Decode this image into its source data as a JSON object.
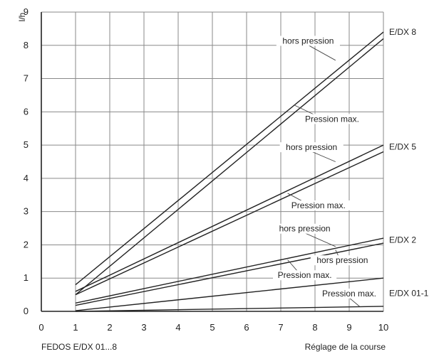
{
  "chart_data": {
    "type": "line",
    "ylabel": "l/h",
    "xlabel": "Réglage de la course",
    "footer_left": "FEDOS E/DX 01...8",
    "xlim": [
      0,
      10
    ],
    "ylim": [
      0,
      9
    ],
    "x_ticks": [
      "0",
      "1",
      "2",
      "3",
      "4",
      "5",
      "6",
      "7",
      "8",
      "9",
      "10"
    ],
    "y_ticks": [
      "0",
      "1",
      "2",
      "3",
      "4",
      "5",
      "6",
      "7",
      "8",
      "9"
    ],
    "grid": true,
    "series": [
      {
        "name": "E/DX 8 hors pression",
        "x": [
          1,
          10
        ],
        "y": [
          0.8,
          8.4
        ]
      },
      {
        "name": "E/DX 8 Pression max.",
        "x": [
          1,
          10
        ],
        "y": [
          0.5,
          8.2
        ]
      },
      {
        "name": "E/DX 5 hors pression",
        "x": [
          1,
          10
        ],
        "y": [
          0.6,
          5.0
        ]
      },
      {
        "name": "E/DX 5 Pression max.",
        "x": [
          1,
          10
        ],
        "y": [
          0.5,
          4.8
        ]
      },
      {
        "name": "E/DX 2 hors pression",
        "x": [
          1,
          10
        ],
        "y": [
          0.25,
          2.2
        ]
      },
      {
        "name": "E/DX 2 Pression max.",
        "x": [
          1,
          10
        ],
        "y": [
          0.18,
          2.05
        ]
      },
      {
        "name": "E/DX 01-1 hors pression",
        "x": [
          1,
          10
        ],
        "y": [
          0.02,
          1.0
        ]
      },
      {
        "name": "E/DX 01-1 Pression max.",
        "x": [
          1,
          10
        ],
        "y": [
          0.0,
          0.15
        ]
      }
    ],
    "model_labels": [
      {
        "text": "E/DX 8",
        "y": 8.4
      },
      {
        "text": "E/DX 5",
        "y": 4.95
      },
      {
        "text": "E/DX 2",
        "y": 2.15
      },
      {
        "text": "E/DX 01-1",
        "y": 0.55
      }
    ],
    "annotations": [
      {
        "text": "hors pression",
        "x": 7.8,
        "y": 8.05,
        "px": 8.6,
        "py": 7.55
      },
      {
        "text": "Pression max.",
        "x": 8.5,
        "y": 5.7,
        "px": 7.4,
        "py": 6.2
      },
      {
        "text": "hors pression",
        "x": 7.9,
        "y": 4.85,
        "px": 8.6,
        "py": 4.5
      },
      {
        "text": "Pression max.",
        "x": 8.1,
        "y": 3.1,
        "px": 7.2,
        "py": 3.55
      },
      {
        "text": "hors pression",
        "x": 7.7,
        "y": 2.4,
        "px": 8.6,
        "py": 1.95
      },
      {
        "text": "hors pression",
        "x": 8.8,
        "y": 1.45,
        "px": 8.6,
        "py": 1.85
      },
      {
        "text": "Pression max.",
        "x": 7.7,
        "y": 1.0,
        "px": 7.2,
        "py": 1.55
      },
      {
        "text": "Pression max.",
        "x": 9.0,
        "y": 0.45,
        "px": 9.3,
        "py": 0.15
      }
    ]
  }
}
